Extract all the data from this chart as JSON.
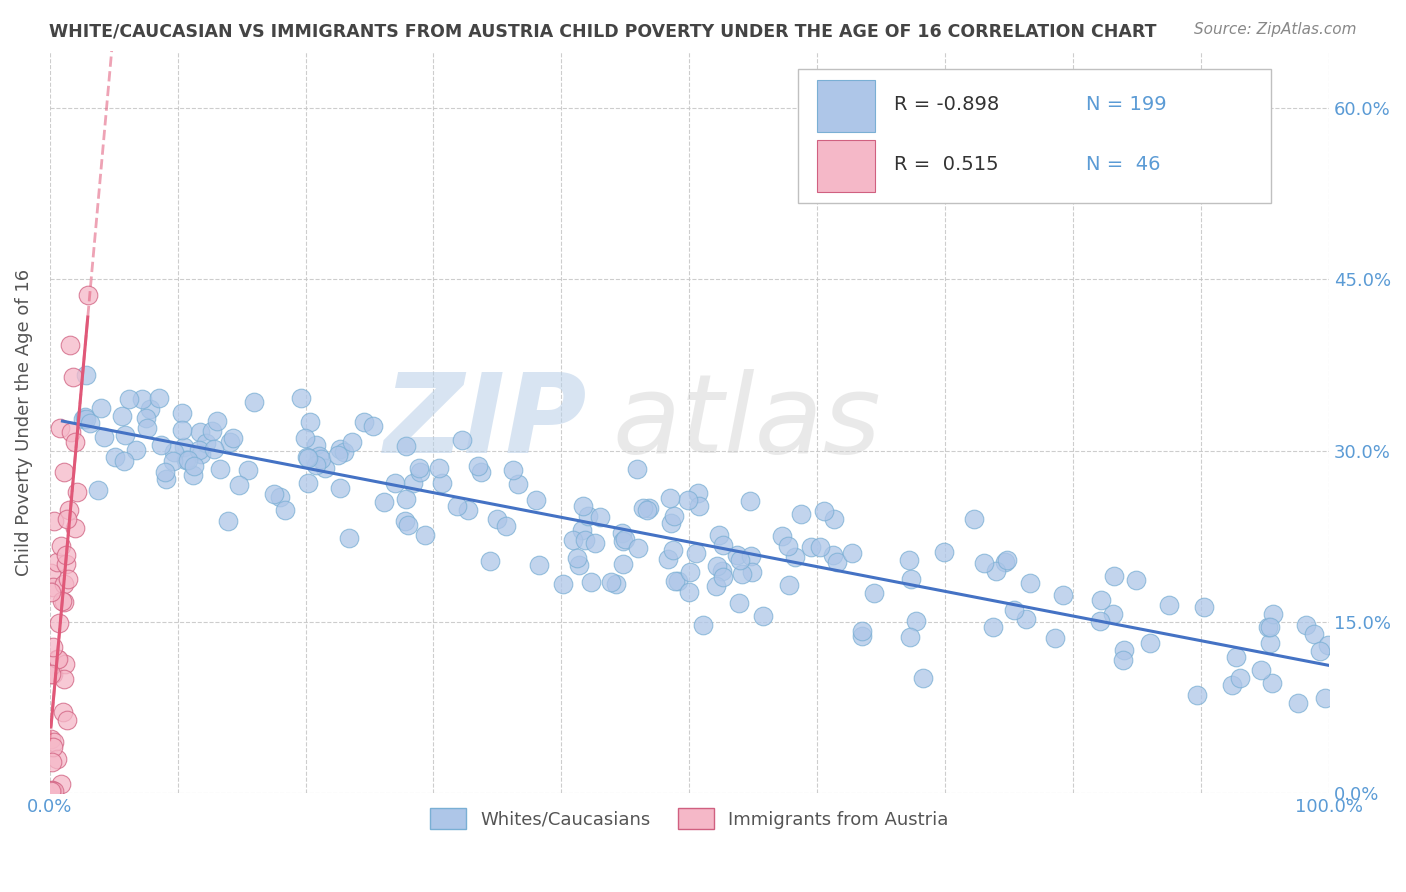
{
  "title": "WHITE/CAUCASIAN VS IMMIGRANTS FROM AUSTRIA CHILD POVERTY UNDER THE AGE OF 16 CORRELATION CHART",
  "source": "Source: ZipAtlas.com",
  "ylabel": "Child Poverty Under the Age of 16",
  "watermark_zip": "ZIP",
  "watermark_atlas": "atlas",
  "blue_R": -0.898,
  "blue_N": 199,
  "pink_R": 0.515,
  "pink_N": 46,
  "blue_color": "#aec6e8",
  "blue_line_color": "#4472c4",
  "pink_color": "#f5b8c8",
  "pink_line_color": "#e05878",
  "blue_dot_edge": "#7aafd4",
  "pink_dot_edge": "#d06080",
  "legend_label_blue": "Whites/Caucasians",
  "legend_label_pink": "Immigrants from Austria",
  "xlim": [
    0,
    1.0
  ],
  "ylim": [
    0,
    0.65
  ],
  "ytick_values": [
    0.0,
    0.15,
    0.3,
    0.45,
    0.6
  ],
  "xtick_values": [
    0.0,
    0.1,
    0.2,
    0.3,
    0.4,
    0.5,
    0.6,
    0.7,
    0.8,
    0.9,
    1.0
  ],
  "grid_color": "#c8c8c8",
  "background_color": "#ffffff",
  "title_color": "#444444",
  "axis_label_color": "#555555",
  "tick_label_color": "#5b9bd5",
  "source_color": "#888888"
}
